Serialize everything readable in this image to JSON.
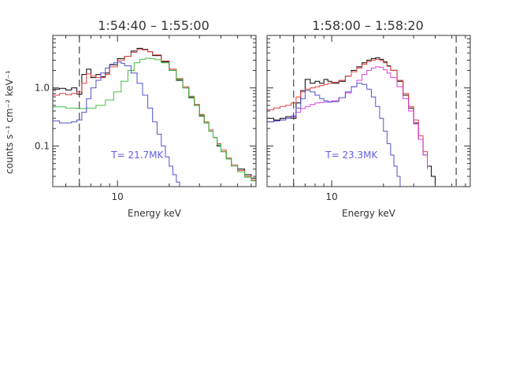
{
  "chart_data": [
    {
      "type": "line",
      "title": "1:54:40 – 1:55:00",
      "xlabel": "Energy keV",
      "ylabel": "counts s⁻¹ cm⁻² keV⁻¹",
      "xscale": "log",
      "yscale": "log",
      "xlim": [
        4.2,
        64
      ],
      "ylim": [
        0.02,
        8
      ],
      "xticks": [
        {
          "value": 10,
          "label": "10"
        }
      ],
      "yticks": [
        {
          "value": 1,
          "label": "1.0"
        },
        {
          "value": 0.1,
          "label": "0.1"
        }
      ],
      "vlines": [
        6
      ],
      "annotation": {
        "text": "T= 21.7MK",
        "x": 9.2,
        "y": 0.07,
        "color": "#6060e0"
      },
      "series": [
        {
          "color": "#000000",
          "style": "step",
          "x": [
            4.2,
            4.6,
            5.0,
            5.4,
            5.8,
            6.2,
            6.6,
            7.0,
            7.5,
            8.0,
            8.5,
            9.0,
            10,
            11,
            12,
            13,
            14,
            15,
            16,
            18,
            20,
            22,
            24,
            26,
            28,
            30,
            32,
            34,
            36,
            38,
            40,
            43,
            46,
            50,
            55,
            60,
            64
          ],
          "y": [
            0.95,
            0.98,
            0.92,
            1.0,
            0.78,
            1.7,
            2.1,
            1.5,
            1.7,
            1.55,
            1.8,
            2.5,
            3.2,
            3.5,
            4.3,
            4.8,
            4.6,
            4.2,
            3.6,
            2.8,
            2.0,
            1.35,
            1.0,
            0.68,
            0.5,
            0.33,
            0.25,
            0.18,
            0.14,
            0.1,
            0.08,
            0.06,
            0.045,
            0.04,
            0.032,
            0.028,
            0.025
          ]
        },
        {
          "color": "#e04040",
          "style": "step",
          "x": [
            4.2,
            4.6,
            5.0,
            5.4,
            5.8,
            6.2,
            6.6,
            7.0,
            7.5,
            8.0,
            8.5,
            9.0,
            10,
            11,
            12,
            13,
            14,
            15,
            16,
            18,
            20,
            22,
            24,
            26,
            28,
            30,
            32,
            34,
            36,
            38,
            40,
            43,
            46,
            50,
            55,
            60,
            64
          ],
          "y": [
            0.75,
            0.8,
            0.76,
            0.8,
            0.85,
            1.2,
            1.75,
            1.6,
            1.5,
            1.5,
            1.7,
            2.3,
            3.0,
            3.5,
            4.1,
            4.6,
            4.5,
            4.2,
            3.7,
            2.9,
            2.1,
            1.45,
            1.05,
            0.72,
            0.52,
            0.35,
            0.26,
            0.19,
            0.14,
            0.11,
            0.085,
            0.062,
            0.047,
            0.038,
            0.03,
            0.026,
            0.023
          ]
        },
        {
          "color": "#40c040",
          "style": "step",
          "x": [
            4.2,
            5.0,
            5.8,
            6.6,
            7.5,
            8.5,
            9.5,
            10.5,
            11.5,
            12.5,
            13.5,
            14.5,
            15.5,
            16.5,
            18,
            20,
            22,
            24,
            26,
            28,
            30,
            32,
            34,
            36,
            38,
            40,
            43,
            46,
            50,
            55,
            60,
            64
          ],
          "y": [
            0.47,
            0.45,
            0.44,
            0.45,
            0.5,
            0.62,
            0.85,
            1.3,
            2.0,
            2.7,
            3.1,
            3.25,
            3.2,
            3.05,
            2.7,
            2.0,
            1.4,
            1.0,
            0.7,
            0.5,
            0.34,
            0.25,
            0.18,
            0.14,
            0.105,
            0.08,
            0.06,
            0.045,
            0.036,
            0.029,
            0.025,
            0.022
          ]
        },
        {
          "color": "#5050d0",
          "style": "step",
          "x": [
            4.2,
            4.6,
            5.0,
            5.4,
            5.8,
            6.2,
            6.6,
            7.0,
            7.5,
            8.0,
            8.5,
            9.0,
            9.5,
            10,
            10.5,
            11,
            12,
            13,
            14,
            15,
            16,
            17,
            18,
            19,
            20,
            21,
            22,
            23
          ],
          "y": [
            0.27,
            0.25,
            0.25,
            0.26,
            0.28,
            0.38,
            0.65,
            1.0,
            1.35,
            1.8,
            2.2,
            2.55,
            2.7,
            2.8,
            2.65,
            2.4,
            1.8,
            1.2,
            0.75,
            0.45,
            0.26,
            0.16,
            0.1,
            0.065,
            0.045,
            0.032,
            0.024,
            0.02
          ]
        }
      ]
    },
    {
      "type": "line",
      "title": "1:58:00 – 1:58:20",
      "xlabel": "Energy keV",
      "ylabel": "",
      "xscale": "log",
      "yscale": "log",
      "xlim": [
        4.2,
        64
      ],
      "ylim": [
        0.02,
        8
      ],
      "xticks": [
        {
          "value": 10,
          "label": "10"
        }
      ],
      "yticks": [
        {
          "value": 1,
          "label": ""
        },
        {
          "value": 0.1,
          "label": ""
        }
      ],
      "vlines": [
        6,
        53
      ],
      "annotation": {
        "text": "T= 23.3MK",
        "x": 9.2,
        "y": 0.07,
        "color": "#6060e0"
      },
      "series": [
        {
          "color": "#000000",
          "style": "step",
          "x": [
            4.2,
            4.6,
            5.0,
            5.4,
            5.8,
            6.2,
            6.6,
            7.0,
            7.5,
            8.0,
            8.5,
            9.0,
            9.5,
            10,
            11,
            12,
            13,
            14,
            15,
            16,
            17,
            18,
            19,
            20,
            21,
            22,
            24,
            26,
            28,
            30,
            32,
            34,
            36,
            38,
            40
          ],
          "y": [
            0.3,
            0.28,
            0.3,
            0.32,
            0.3,
            0.55,
            0.9,
            1.4,
            1.2,
            1.3,
            1.2,
            1.4,
            1.3,
            1.2,
            1.3,
            1.6,
            2.0,
            2.3,
            2.7,
            3.0,
            3.2,
            3.3,
            3.1,
            2.8,
            2.4,
            2.0,
            1.3,
            0.75,
            0.45,
            0.25,
            0.13,
            0.07,
            0.045,
            0.03,
            0.02
          ]
        },
        {
          "color": "#e04040",
          "style": "step",
          "x": [
            4.2,
            4.6,
            5.0,
            5.4,
            5.8,
            6.2,
            6.6,
            7.0,
            7.5,
            8.0,
            8.5,
            9.0,
            9.5,
            10,
            11,
            12,
            13,
            14,
            15,
            16,
            17,
            18,
            19,
            20,
            21,
            22,
            24,
            26,
            28,
            30,
            32,
            34,
            36
          ],
          "y": [
            0.42,
            0.45,
            0.48,
            0.5,
            0.55,
            0.7,
            0.85,
            0.95,
            1.0,
            1.05,
            1.1,
            1.15,
            1.2,
            1.25,
            1.35,
            1.6,
            1.9,
            2.2,
            2.55,
            2.85,
            3.0,
            3.1,
            2.95,
            2.7,
            2.35,
            2.0,
            1.35,
            0.8,
            0.48,
            0.28,
            0.15,
            0.08,
            0.045
          ]
        },
        {
          "color": "#e040e0",
          "style": "step",
          "x": [
            4.2,
            4.6,
            5.0,
            5.4,
            5.8,
            6.2,
            6.6,
            7.0,
            7.5,
            8.0,
            8.5,
            9.0,
            9.5,
            10,
            11,
            12,
            13,
            14,
            15,
            16,
            17,
            18,
            19,
            20,
            21,
            22,
            24,
            26,
            28,
            30,
            32,
            34,
            36
          ],
          "y": [
            0.26,
            0.27,
            0.28,
            0.3,
            0.32,
            0.38,
            0.44,
            0.48,
            0.52,
            0.55,
            0.56,
            0.57,
            0.58,
            0.6,
            0.68,
            0.82,
            1.05,
            1.35,
            1.7,
            2.0,
            2.2,
            2.3,
            2.25,
            2.05,
            1.8,
            1.5,
            1.05,
            0.65,
            0.4,
            0.24,
            0.13,
            0.07,
            0.04
          ]
        },
        {
          "color": "#5050d0",
          "style": "step",
          "x": [
            4.2,
            4.6,
            5.0,
            5.4,
            5.8,
            6.2,
            6.6,
            7.0,
            7.5,
            8.0,
            8.5,
            9.0,
            9.5,
            10,
            11,
            12,
            13,
            14,
            15,
            16,
            17,
            18,
            19,
            20,
            21,
            22,
            23,
            24,
            25
          ],
          "y": [
            0.26,
            0.27,
            0.28,
            0.3,
            0.33,
            0.45,
            0.65,
            0.9,
            0.85,
            0.75,
            0.65,
            0.6,
            0.57,
            0.58,
            0.68,
            0.85,
            1.05,
            1.2,
            1.15,
            0.95,
            0.7,
            0.48,
            0.3,
            0.18,
            0.11,
            0.07,
            0.045,
            0.03,
            0.02
          ]
        }
      ]
    }
  ]
}
